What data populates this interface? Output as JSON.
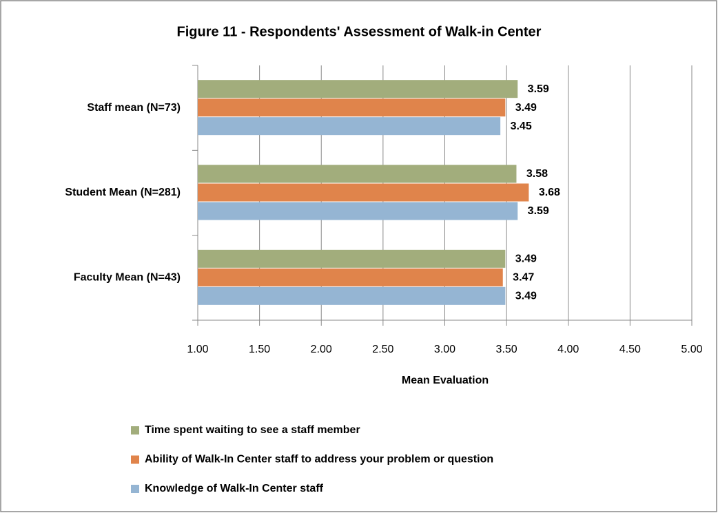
{
  "chart_data": {
    "type": "hbar",
    "title": "Figure 11 - Respondents' Assessment of Walk-in Center",
    "categories": [
      "Staff mean (N=73)",
      "Student Mean (N=281)",
      "Faculty Mean (N=43)"
    ],
    "series": [
      {
        "name": "Time spent waiting to see a staff member",
        "color": "#a2ad7c",
        "values": [
          3.59,
          3.58,
          3.49
        ]
      },
      {
        "name": "Ability of Walk-In Center staff to address your problem or question",
        "color": "#e0844b",
        "values": [
          3.49,
          3.68,
          3.47
        ]
      },
      {
        "name": "Knowledge of Walk-In Center staff",
        "color": "#95b5d3",
        "values": [
          3.45,
          3.59,
          3.49
        ]
      }
    ],
    "xlabel": "Mean Evaluation",
    "xlim": [
      1,
      5
    ],
    "xticks": [
      {
        "value": 1,
        "label": "1.00"
      },
      {
        "value": 1.5,
        "label": "1.50"
      },
      {
        "value": 2,
        "label": "2.00"
      },
      {
        "value": 2.5,
        "label": "2.50"
      },
      {
        "value": 3,
        "label": "3.00"
      },
      {
        "value": 3.5,
        "label": "3.50"
      },
      {
        "value": 4,
        "label": "4.00"
      },
      {
        "value": 4.5,
        "label": "4.50"
      },
      {
        "value": 5,
        "label": "5.00"
      }
    ],
    "grid": true,
    "legend": "bottom"
  }
}
